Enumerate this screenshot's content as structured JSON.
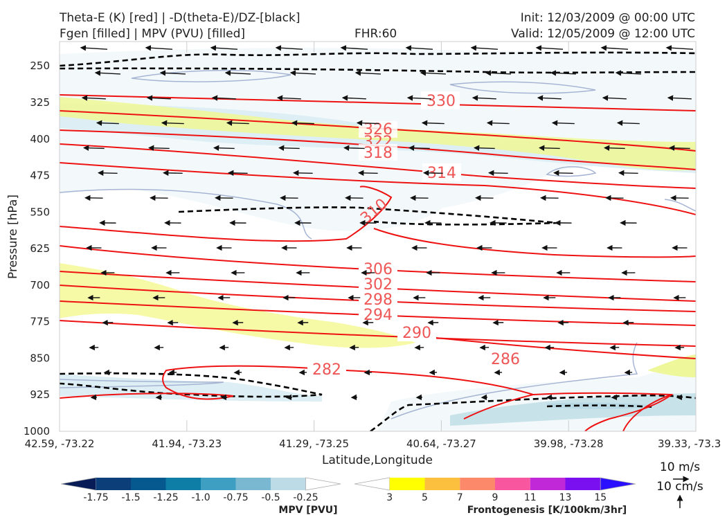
{
  "header": {
    "left_line1": "Theta-E (K) [red] | -D(theta-E)/DZ-[black]",
    "left_line2": "Fgen [filled] | MPV (PVU) [filled]",
    "center": "FHR:60",
    "right_line1": "Init: 12/03/2009 @ 00:00 UTC",
    "right_line2": "Valid: 12/05/2009 @ 12:00 UTC"
  },
  "chart_data": {
    "type": "cross-section",
    "xlabel": "Latitude,Longitude",
    "ylabel": "Pressure [hPa]",
    "x_ticks": [
      "42.59, -73.22",
      "41.94, -73.23",
      "41.29, -73.25",
      "40.64, -73.27",
      "39.98, -73.28",
      "39.33, -73.3"
    ],
    "y_ticks": [
      250,
      325,
      400,
      475,
      550,
      625,
      700,
      775,
      850,
      925,
      1000
    ],
    "ylim": [
      1000,
      200
    ],
    "theta_e_color": "#ee1111",
    "theta_e_labels": [
      "330",
      "326",
      "322",
      "318",
      "314",
      "310",
      "306",
      "302",
      "298",
      "294",
      "290",
      "286",
      "282"
    ],
    "theta_e_label_color": "#ee5555",
    "stability_color": "#000000",
    "wind_color": "#111111",
    "wind_legend": {
      "speed": "10 m/s",
      "vertical": "10 cm/s"
    }
  },
  "colorbars": {
    "mpv": {
      "label": "MPV [PVU]",
      "ticks": [
        "-1.75",
        "-1.5",
        "-1.25",
        "-1.0",
        "-0.75",
        "-0.5",
        "-0.25"
      ],
      "colors": [
        "#081d58",
        "#0c3e7a",
        "#06598f",
        "#0e7ea6",
        "#3f9fc2",
        "#7ab8d2",
        "#bcdbe6",
        "#ffffff"
      ]
    },
    "fgen": {
      "label": "Frontogenesis [K/100km/3hr]",
      "ticks": [
        "3",
        "5",
        "7",
        "9",
        "11",
        "13",
        "15"
      ],
      "colors": [
        "#ffffff",
        "#ffff00",
        "#fdbf3e",
        "#fc8a6a",
        "#f857a0",
        "#c028d8",
        "#7a10f0",
        "#2a10ff"
      ]
    }
  }
}
